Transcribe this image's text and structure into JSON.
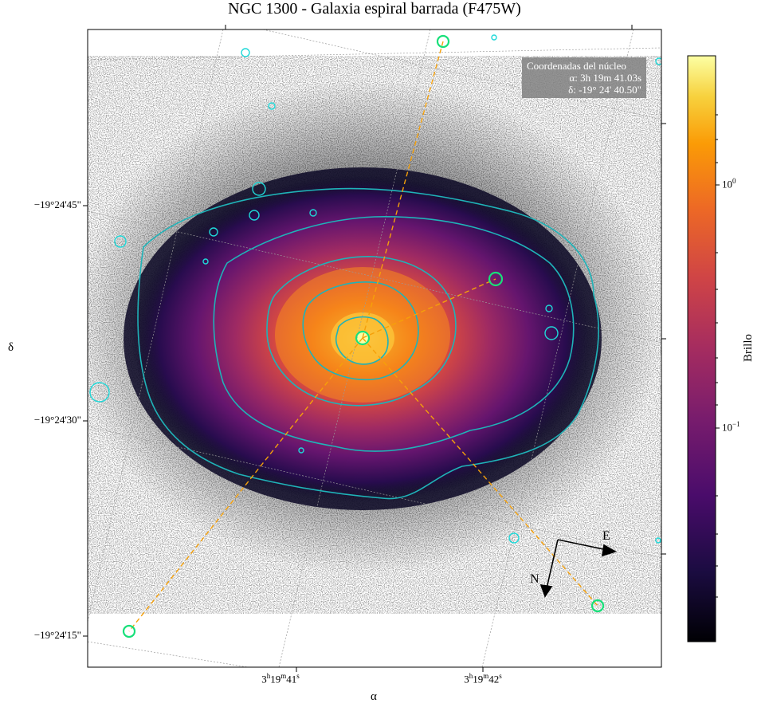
{
  "title": "NGC 1300 - Galaxia espiral barrada (F475W)",
  "xlabel": "α",
  "ylabel": "δ",
  "x_ticks": [
    {
      "h": "3",
      "m": "19",
      "s": "41"
    },
    {
      "h": "3",
      "m": "19",
      "s": "42"
    }
  ],
  "y_ticks": [
    "−19°24'45\"",
    "−19°24'30\"",
    "−19°24'15\""
  ],
  "colorbar": {
    "label": "Brillo",
    "scale": "log",
    "colormap": "inferno",
    "ticks": [
      {
        "base": "10",
        "exp": "0"
      },
      {
        "base": "10",
        "exp": "−1"
      }
    ]
  },
  "nucleus_box": {
    "title": "Coordenadas del núcleo",
    "ra": "α: 3h 19m 41.03s",
    "dec": "δ: -19° 24' 40.50\""
  },
  "compass": {
    "north": "N",
    "east": "E"
  },
  "colors": {
    "contour": "#1fb3b8",
    "bar_lines": "#f5a00a",
    "markers": "#18e07a",
    "grid": "#9a9a9a"
  }
}
